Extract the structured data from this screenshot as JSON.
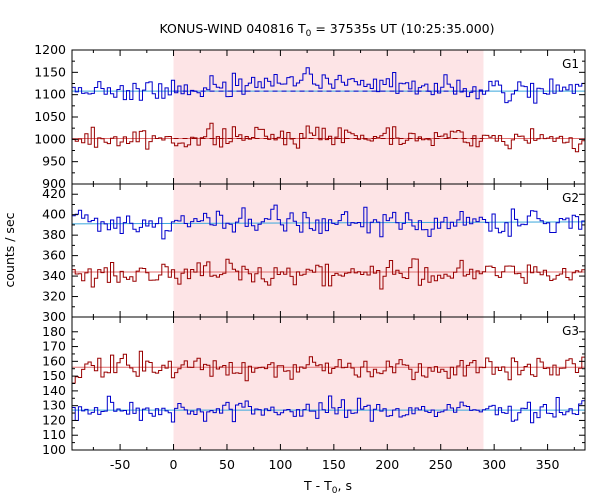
{
  "chart_data": {
    "type": "line",
    "title": {
      "main": "KONUS-WIND 040816 T",
      "sub": "0",
      "rest": " = 37535s UT (10:25:35.000)"
    },
    "xlabel": {
      "main": "T - T",
      "sub": "0",
      "rest": ", s"
    },
    "ylabel": "counts / sec",
    "xlim": [
      -95,
      385
    ],
    "x_ticks": [
      -50,
      0,
      50,
      100,
      150,
      200,
      250,
      300,
      350
    ],
    "highlight_interval": [
      0,
      290
    ],
    "highlight_color": "#fde4e6",
    "step_dt": 3,
    "colors": {
      "blue": "#0000cc",
      "red": "#990000",
      "blue_bg": "#3aa7dc",
      "red_bg": "#e07070"
    },
    "panels": [
      {
        "name": "G1",
        "ylim": [
          900,
          1200
        ],
        "y_ticks": [
          900,
          950,
          1000,
          1050,
          1100,
          1150,
          1200
        ],
        "series": [
          {
            "color": "blue",
            "mean": 1108,
            "amp": 22,
            "profile": [
              [
                -95,
                0
              ],
              [
                0,
                0
              ],
              [
                60,
                15
              ],
              [
                140,
                20
              ],
              [
                220,
                15
              ],
              [
                290,
                0
              ],
              [
                385,
                0
              ]
            ],
            "background": [
              [
                -95,
                1108
              ],
              [
                385,
                1108
              ]
            ]
          },
          {
            "color": "red",
            "mean": 1000,
            "amp": 19,
            "profile": [
              [
                -95,
                0
              ],
              [
                0,
                0
              ],
              [
                80,
                8
              ],
              [
                160,
                10
              ],
              [
                240,
                8
              ],
              [
                290,
                0
              ],
              [
                385,
                0
              ]
            ],
            "background": [
              [
                -95,
                1002
              ],
              [
                385,
                1002
              ]
            ]
          }
        ]
      },
      {
        "name": "G2",
        "ylim": [
          300,
          430
        ],
        "y_ticks": [
          300,
          320,
          340,
          360,
          380,
          400,
          420
        ],
        "series": [
          {
            "color": "blue",
            "mean": 392,
            "amp": 11,
            "profile": [
              [
                -95,
                0
              ],
              [
                385,
                0
              ]
            ],
            "background": [
              [
                -95,
                391
              ],
              [
                385,
                393
              ]
            ]
          },
          {
            "color": "red",
            "mean": 343,
            "amp": 10,
            "profile": [
              [
                -95,
                0
              ],
              [
                385,
                0
              ]
            ],
            "background": [
              [
                -95,
                344
              ],
              [
                385,
                344
              ]
            ]
          }
        ]
      },
      {
        "name": "G3",
        "ylim": [
          100,
          190
        ],
        "y_ticks": [
          100,
          110,
          120,
          130,
          140,
          150,
          160,
          170,
          180
        ],
        "series": [
          {
            "color": "red",
            "mean": 156,
            "amp": 7,
            "profile": [
              [
                -95,
                0
              ],
              [
                385,
                0
              ]
            ],
            "background": [
              [
                -95,
                156
              ],
              [
                385,
                156
              ]
            ]
          },
          {
            "color": "blue",
            "mean": 127,
            "amp": 6,
            "profile": [
              [
                -95,
                0
              ],
              [
                385,
                0
              ]
            ],
            "background": [
              [
                -95,
                127
              ],
              [
                385,
                127
              ]
            ]
          }
        ]
      }
    ]
  }
}
